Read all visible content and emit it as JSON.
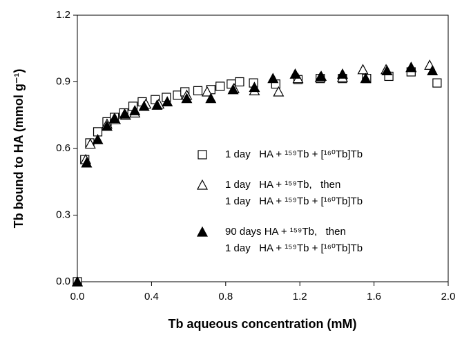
{
  "chart_data": {
    "type": "scatter",
    "x_label": "Tb aqueous concentration (mM)",
    "y_label": "Tb bound to HA (mmol g⁻¹)",
    "xlim": [
      0,
      2
    ],
    "ylim": [
      0,
      1.2
    ],
    "xticks": [
      {
        "value": 0,
        "label": "0.0"
      },
      {
        "value": 0.4,
        "label": "0.4"
      },
      {
        "value": 0.8,
        "label": "0.8"
      },
      {
        "value": 1.2,
        "label": "1.2"
      },
      {
        "value": 1.6,
        "label": "1.6"
      },
      {
        "value": 2,
        "label": "2.0"
      }
    ],
    "yticks": [
      {
        "value": 0,
        "label": "0.0"
      },
      {
        "value": 0.3,
        "label": "0.3"
      },
      {
        "value": 0.6,
        "label": "0.6"
      },
      {
        "value": 0.9,
        "label": "0.9"
      },
      {
        "value": 1.2,
        "label": "1.2"
      }
    ],
    "series": [
      {
        "name": "1 day   HA + ¹⁵⁹Tb + [¹⁶⁰Tb]Tb",
        "color": "#000000",
        "marker": "square",
        "filled": false,
        "x": [
          0,
          0.04,
          0.067,
          0.11,
          0.16,
          0.2,
          0.25,
          0.3,
          0.35,
          0.42,
          0.48,
          0.54,
          0.58,
          0.65,
          0.72,
          0.77,
          0.83,
          0.875,
          0.95,
          1.07,
          1.19,
          1.31,
          1.43,
          1.56,
          1.68,
          1.8,
          1.94
        ],
        "values": [
          0,
          0.55,
          0.625,
          0.675,
          0.72,
          0.74,
          0.76,
          0.79,
          0.81,
          0.82,
          0.83,
          0.84,
          0.855,
          0.86,
          0.865,
          0.88,
          0.89,
          0.9,
          0.895,
          0.89,
          0.91,
          0.915,
          0.915,
          0.915,
          0.925,
          0.945,
          0.895
        ]
      },
      {
        "name": "1 day   HA + ¹⁵⁹Tb,   then\n1 day   HA + ¹⁵⁹Tb + [¹⁶⁰Tb]Tb",
        "color": "#000000",
        "marker": "triangle",
        "filled": false,
        "x": [
          0,
          0.045,
          0.07,
          0.16,
          0.205,
          0.26,
          0.31,
          0.37,
          0.44,
          0.59,
          0.7,
          0.845,
          0.955,
          1.085,
          1.19,
          1.31,
          1.43,
          1.54,
          1.665,
          1.8,
          1.9
        ],
        "values": [
          0,
          0.55,
          0.62,
          0.71,
          0.73,
          0.75,
          0.76,
          0.8,
          0.8,
          0.84,
          0.855,
          0.87,
          0.86,
          0.855,
          0.915,
          0.92,
          0.92,
          0.955,
          0.955,
          0.965,
          0.975
        ]
      },
      {
        "name": "90 days HA + ¹⁵⁹Tb,   then\n1 day   HA + ¹⁵⁹Tb + [¹⁶⁰Tb]Tb",
        "color": "#000000",
        "marker": "triangle",
        "filled": true,
        "x": [
          0,
          0.05,
          0.11,
          0.16,
          0.2,
          0.255,
          0.31,
          0.36,
          0.43,
          0.485,
          0.59,
          0.72,
          0.84,
          0.955,
          1.055,
          1.175,
          1.315,
          1.43,
          1.555,
          1.67,
          1.8,
          1.915
        ],
        "values": [
          0,
          0.535,
          0.64,
          0.7,
          0.735,
          0.755,
          0.77,
          0.79,
          0.795,
          0.81,
          0.825,
          0.825,
          0.865,
          0.875,
          0.915,
          0.935,
          0.925,
          0.935,
          0.915,
          0.95,
          0.965,
          0.95
        ]
      }
    ]
  }
}
